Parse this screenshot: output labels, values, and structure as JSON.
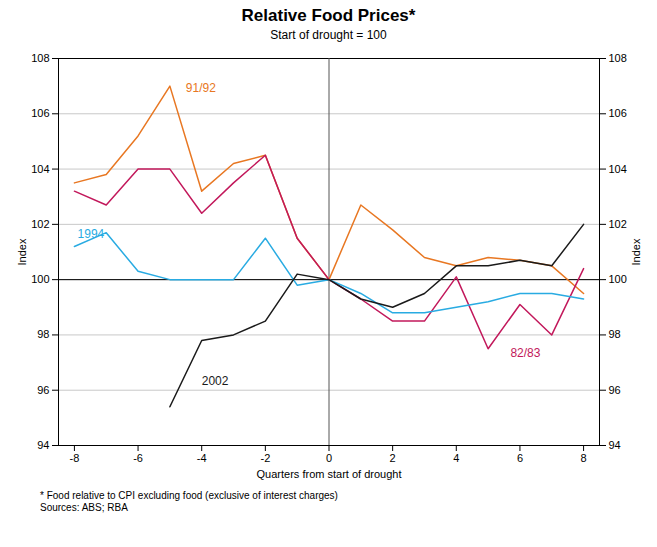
{
  "chart_data": {
    "type": "line",
    "title": "Relative Food Prices*",
    "subtitle": "Start of drought = 100",
    "xlabel": "Quarters from start of drought",
    "ylabel": "Index",
    "y2label": "Index",
    "notes": [
      "*  Food relative to CPI excluding food (exclusive of interest charges)",
      "Sources: ABS; RBA"
    ],
    "xlim": [
      -8.5,
      8.5
    ],
    "xticks": [
      -8,
      -6,
      -4,
      -2,
      0,
      2,
      4,
      6,
      8
    ],
    "ylim": [
      94,
      108
    ],
    "yticks": [
      94,
      96,
      98,
      100,
      102,
      104,
      106,
      108
    ],
    "y2lim": [
      94,
      108
    ],
    "y2ticks": [
      94,
      96,
      98,
      100,
      102,
      104,
      106,
      108
    ],
    "grid": true,
    "reference_lines": {
      "y": [
        100
      ],
      "x": [
        0
      ]
    },
    "series": [
      {
        "name": "91/92",
        "color": "#E87722",
        "x": [
          -8,
          -7,
          -6,
          -5,
          -4,
          -3,
          -2,
          -1,
          0,
          1,
          2,
          3,
          4,
          5,
          6,
          7,
          8
        ],
        "values": [
          103.5,
          103.8,
          105.2,
          107.0,
          103.2,
          104.2,
          104.5,
          101.5,
          100.0,
          102.7,
          101.8,
          100.8,
          100.5,
          100.8,
          100.7,
          100.5,
          99.5
        ]
      },
      {
        "name": "82/83",
        "color": "#C2185B",
        "x": [
          -8,
          -7,
          -6,
          -5,
          -4,
          -3,
          -2,
          -1,
          0,
          1,
          2,
          3,
          4,
          5,
          6,
          7,
          8
        ],
        "values": [
          103.2,
          102.7,
          104.0,
          104.0,
          102.4,
          103.5,
          104.5,
          101.5,
          100.0,
          99.3,
          98.5,
          98.5,
          100.1,
          97.5,
          99.1,
          98.0,
          100.4
        ]
      },
      {
        "name": "1994",
        "color": "#29ABE2",
        "x": [
          -8,
          -7,
          -6,
          -5,
          -4,
          -3,
          -2,
          -1,
          0,
          1,
          2,
          3,
          4,
          5,
          6,
          7,
          8
        ],
        "values": [
          101.2,
          101.7,
          100.3,
          100.0,
          100.0,
          100.0,
          101.5,
          99.8,
          100.0,
          99.5,
          98.8,
          98.8,
          99.0,
          99.2,
          99.5,
          99.5,
          99.3
        ]
      },
      {
        "name": "2002",
        "color": "#1a1a1a",
        "x": [
          -5,
          -4,
          -3,
          -2,
          -1,
          0,
          1,
          2,
          3,
          4,
          5,
          6,
          7,
          8
        ],
        "values": [
          95.4,
          97.8,
          98.0,
          98.5,
          100.2,
          100.0,
          99.3,
          99.0,
          99.5,
          100.5,
          100.5,
          100.7,
          100.5,
          102.0
        ]
      }
    ],
    "annotations": [
      {
        "text": "91/92",
        "x": -4.5,
        "y": 106.8,
        "color": "#E87722"
      },
      {
        "text": "82/83",
        "x": 5.7,
        "y": 97.2,
        "color": "#C2185B"
      },
      {
        "text": "1994",
        "x": -7.9,
        "y": 101.5,
        "color": "#29ABE2"
      },
      {
        "text": "2002",
        "x": -4.0,
        "y": 96.2,
        "color": "#1a1a1a"
      }
    ]
  }
}
